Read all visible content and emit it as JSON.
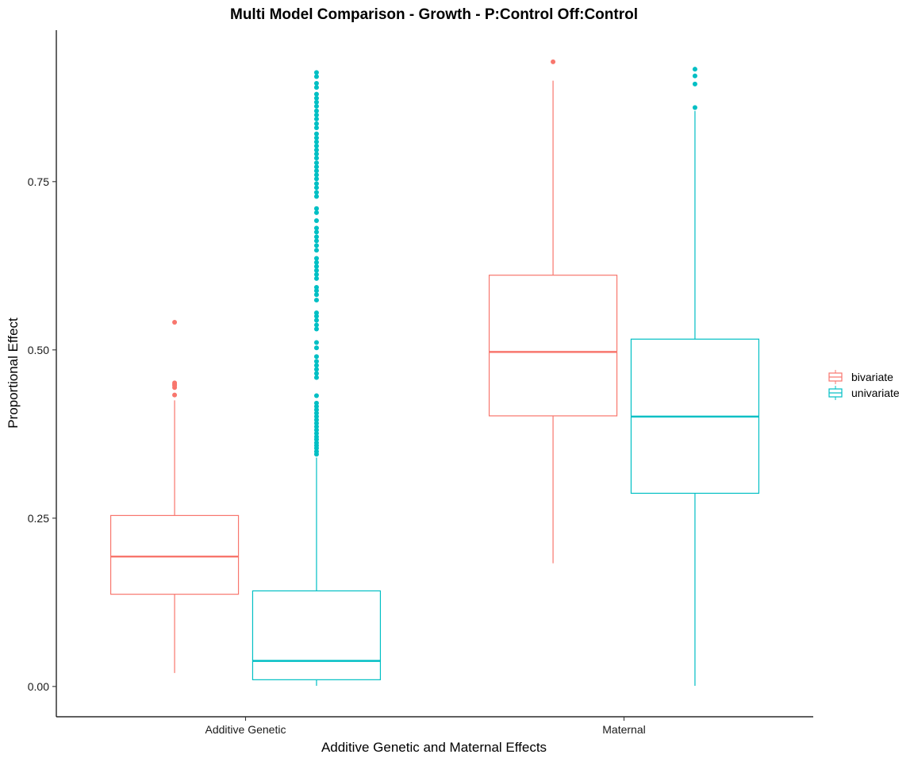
{
  "chart_data": {
    "type": "box",
    "title": "Multi Model Comparison - Growth - P:Control Off:Control",
    "xlabel": "Additive Genetic and Maternal Effects",
    "ylabel": "Proportional Effect",
    "ylim": [
      -0.045,
      0.975
    ],
    "yticks": [
      0.0,
      0.25,
      0.5,
      0.75
    ],
    "ytick_labels": [
      "0.00",
      "0.25",
      "0.50",
      "0.75"
    ],
    "categories": [
      "Additive Genetic",
      "Maternal"
    ],
    "grid": false,
    "legend_position": "right",
    "series": [
      {
        "name": "bivariate",
        "color": "#F8766D",
        "boxes": [
          {
            "category": "Additive Genetic",
            "min": 0.02,
            "q1": 0.137,
            "median": 0.193,
            "q3": 0.254,
            "max": 0.425,
            "outliers": [
              0.433,
              0.444,
              0.447,
              0.449,
              0.451,
              0.541
            ]
          },
          {
            "category": "Maternal",
            "min": 0.183,
            "q1": 0.402,
            "median": 0.497,
            "q3": 0.611,
            "max": 0.9,
            "outliers": [
              0.928
            ]
          }
        ]
      },
      {
        "name": "univariate",
        "color": "#00BFC4",
        "boxes": [
          {
            "category": "Additive Genetic",
            "min": 0.001,
            "q1": 0.01,
            "median": 0.038,
            "q3": 0.142,
            "max": 0.34,
            "outliers": [
              0.345,
              0.349,
              0.354,
              0.358,
              0.362,
              0.367,
              0.371,
              0.376,
              0.381,
              0.386,
              0.391,
              0.396,
              0.401,
              0.406,
              0.411,
              0.416,
              0.421,
              0.432,
              0.459,
              0.465,
              0.471,
              0.477,
              0.483,
              0.49,
              0.503,
              0.511,
              0.531,
              0.537,
              0.544,
              0.55,
              0.555,
              0.574,
              0.582,
              0.588,
              0.593,
              0.606,
              0.612,
              0.618,
              0.624,
              0.63,
              0.636,
              0.648,
              0.655,
              0.662,
              0.668,
              0.675,
              0.681,
              0.692,
              0.704,
              0.71,
              0.728,
              0.734,
              0.741,
              0.747,
              0.754,
              0.76,
              0.766,
              0.772,
              0.778,
              0.785,
              0.791,
              0.797,
              0.803,
              0.809,
              0.815,
              0.821,
              0.83,
              0.836,
              0.843,
              0.849,
              0.855,
              0.862,
              0.868,
              0.874,
              0.88,
              0.89,
              0.896,
              0.906,
              0.912
            ]
          },
          {
            "category": "Maternal",
            "min": 0.001,
            "q1": 0.287,
            "median": 0.401,
            "q3": 0.516,
            "max": 0.855,
            "outliers": [
              0.86,
              0.895,
              0.907,
              0.917
            ]
          }
        ]
      }
    ]
  }
}
